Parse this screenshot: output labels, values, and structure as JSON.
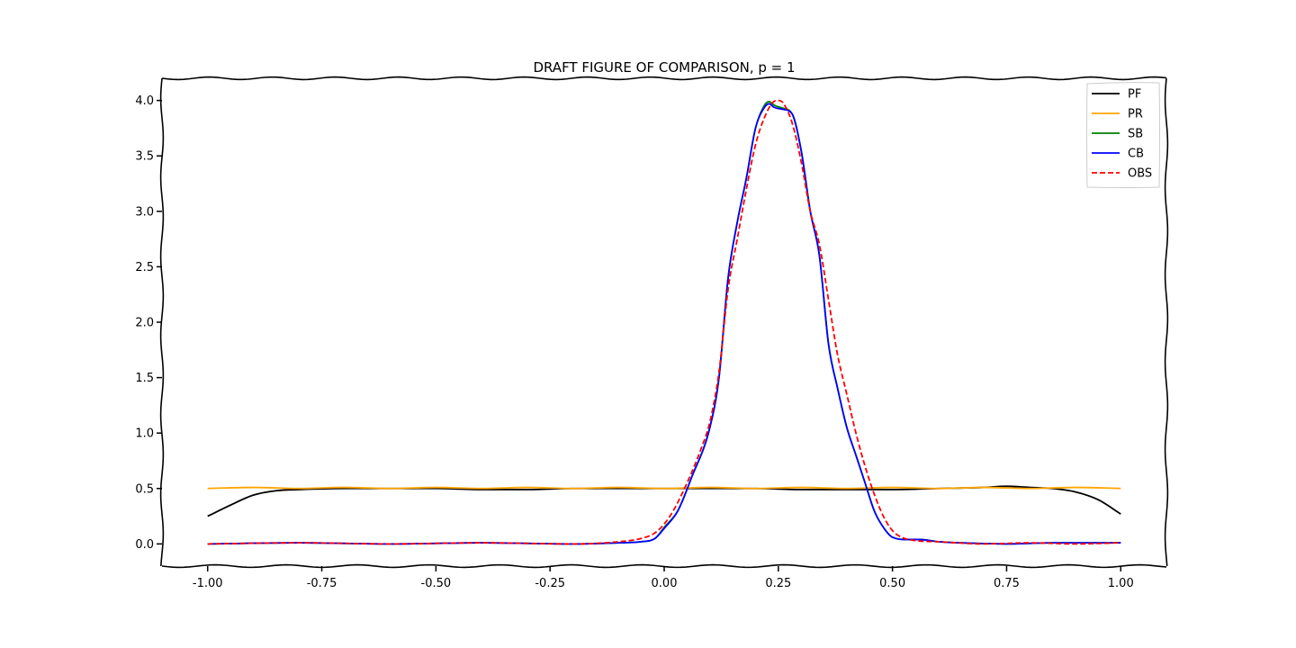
{
  "chart_data": {
    "type": "line",
    "title": "DRAFT FIGURE OF COMPARISON, p = 1",
    "xlabel": "",
    "ylabel": "",
    "xlim": [
      -1.1,
      1.1
    ],
    "ylim": [
      -0.2,
      4.2
    ],
    "xticks": [
      -1.0,
      -0.75,
      -0.5,
      -0.25,
      0.0,
      0.25,
      0.5,
      0.75,
      1.0
    ],
    "xtick_labels": [
      "-1.00",
      "-0.75",
      "-0.50",
      "-0.25",
      "0.00",
      "0.25",
      "0.50",
      "0.75",
      "1.00"
    ],
    "yticks": [
      0.0,
      0.5,
      1.0,
      1.5,
      2.0,
      2.5,
      3.0,
      3.5,
      4.0
    ],
    "ytick_labels": [
      "0.0",
      "0.5",
      "1.0",
      "1.5",
      "2.0",
      "2.5",
      "3.0",
      "3.5",
      "4.0"
    ],
    "grid": false,
    "legend_position": "top-right",
    "style": "hand-drawn (xkcd)",
    "series": [
      {
        "name": "PF",
        "color": "#000000",
        "dash": "solid",
        "x": [
          -1.0,
          -0.95,
          -0.9,
          -0.85,
          -0.8,
          -0.7,
          -0.6,
          -0.5,
          -0.4,
          -0.3,
          -0.2,
          -0.1,
          0.0,
          0.1,
          0.2,
          0.3,
          0.4,
          0.5,
          0.6,
          0.7,
          0.75,
          0.8,
          0.85,
          0.9,
          0.95,
          1.0
        ],
        "y": [
          0.25,
          0.35,
          0.44,
          0.48,
          0.49,
          0.5,
          0.5,
          0.5,
          0.49,
          0.49,
          0.5,
          0.5,
          0.5,
          0.5,
          0.5,
          0.49,
          0.49,
          0.49,
          0.5,
          0.51,
          0.52,
          0.51,
          0.5,
          0.47,
          0.4,
          0.27
        ]
      },
      {
        "name": "PR",
        "color": "#ffa500",
        "dash": "solid",
        "x": [
          -1.0,
          -0.9,
          -0.8,
          -0.7,
          -0.6,
          -0.5,
          -0.4,
          -0.3,
          -0.2,
          -0.1,
          0.0,
          0.1,
          0.2,
          0.3,
          0.4,
          0.5,
          0.6,
          0.7,
          0.8,
          0.9,
          1.0
        ],
        "y": [
          0.5,
          0.51,
          0.5,
          0.51,
          0.5,
          0.51,
          0.5,
          0.51,
          0.5,
          0.51,
          0.5,
          0.51,
          0.5,
          0.51,
          0.5,
          0.51,
          0.5,
          0.51,
          0.5,
          0.51,
          0.5
        ]
      },
      {
        "name": "SB",
        "color": "#008000",
        "dash": "solid",
        "x": [
          -1.0,
          -0.8,
          -0.6,
          -0.4,
          -0.2,
          -0.1,
          -0.05,
          -0.02,
          0.0,
          0.03,
          0.06,
          0.1,
          0.12,
          0.14,
          0.16,
          0.18,
          0.2,
          0.22,
          0.23,
          0.24,
          0.26,
          0.28,
          0.3,
          0.32,
          0.34,
          0.36,
          0.38,
          0.4,
          0.42,
          0.44,
          0.46,
          0.48,
          0.5,
          0.53,
          0.56,
          0.6,
          0.65,
          0.75,
          0.85,
          1.0
        ],
        "y": [
          0.0,
          0.01,
          0.0,
          0.01,
          0.0,
          0.01,
          0.02,
          0.05,
          0.15,
          0.3,
          0.6,
          1.05,
          1.5,
          2.4,
          2.9,
          3.3,
          3.75,
          3.96,
          3.99,
          3.96,
          3.93,
          3.88,
          3.55,
          3.0,
          2.6,
          1.8,
          1.4,
          1.05,
          0.8,
          0.55,
          0.3,
          0.15,
          0.06,
          0.04,
          0.04,
          0.02,
          0.01,
          0.0,
          0.01,
          0.01
        ]
      },
      {
        "name": "CB",
        "color": "#0000ff",
        "dash": "solid",
        "x": [
          -1.0,
          -0.8,
          -0.6,
          -0.4,
          -0.2,
          -0.1,
          -0.05,
          -0.02,
          0.0,
          0.03,
          0.06,
          0.1,
          0.12,
          0.14,
          0.16,
          0.18,
          0.2,
          0.22,
          0.23,
          0.24,
          0.26,
          0.28,
          0.3,
          0.32,
          0.34,
          0.36,
          0.38,
          0.4,
          0.42,
          0.44,
          0.46,
          0.48,
          0.5,
          0.53,
          0.56,
          0.6,
          0.65,
          0.75,
          0.85,
          1.0
        ],
        "y": [
          0.0,
          0.01,
          0.0,
          0.01,
          0.0,
          0.01,
          0.02,
          0.05,
          0.14,
          0.3,
          0.6,
          1.05,
          1.5,
          2.4,
          2.9,
          3.3,
          3.75,
          3.94,
          3.97,
          3.94,
          3.92,
          3.88,
          3.55,
          3.0,
          2.6,
          1.8,
          1.4,
          1.05,
          0.8,
          0.55,
          0.3,
          0.15,
          0.06,
          0.04,
          0.04,
          0.02,
          0.01,
          0.0,
          0.01,
          0.01
        ]
      },
      {
        "name": "OBS",
        "color": "#ff0000",
        "dash": "dashed",
        "x": [
          -1.0,
          -0.8,
          -0.6,
          -0.4,
          -0.2,
          -0.1,
          -0.05,
          -0.02,
          0.0,
          0.02,
          0.05,
          0.08,
          0.1,
          0.12,
          0.14,
          0.16,
          0.18,
          0.2,
          0.22,
          0.24,
          0.25,
          0.26,
          0.28,
          0.3,
          0.32,
          0.34,
          0.36,
          0.38,
          0.4,
          0.42,
          0.44,
          0.46,
          0.48,
          0.5,
          0.52,
          0.55,
          0.6,
          0.7,
          0.8,
          0.9,
          1.0
        ],
        "y": [
          0.0,
          0.01,
          0.0,
          0.01,
          0.0,
          0.02,
          0.05,
          0.1,
          0.18,
          0.3,
          0.55,
          0.85,
          1.1,
          1.55,
          2.3,
          2.75,
          3.2,
          3.6,
          3.85,
          3.99,
          4.0,
          3.98,
          3.8,
          3.45,
          3.0,
          2.7,
          2.2,
          1.7,
          1.35,
          1.0,
          0.7,
          0.45,
          0.25,
          0.12,
          0.06,
          0.03,
          0.02,
          0.0,
          0.01,
          0.0,
          0.01
        ]
      }
    ]
  }
}
